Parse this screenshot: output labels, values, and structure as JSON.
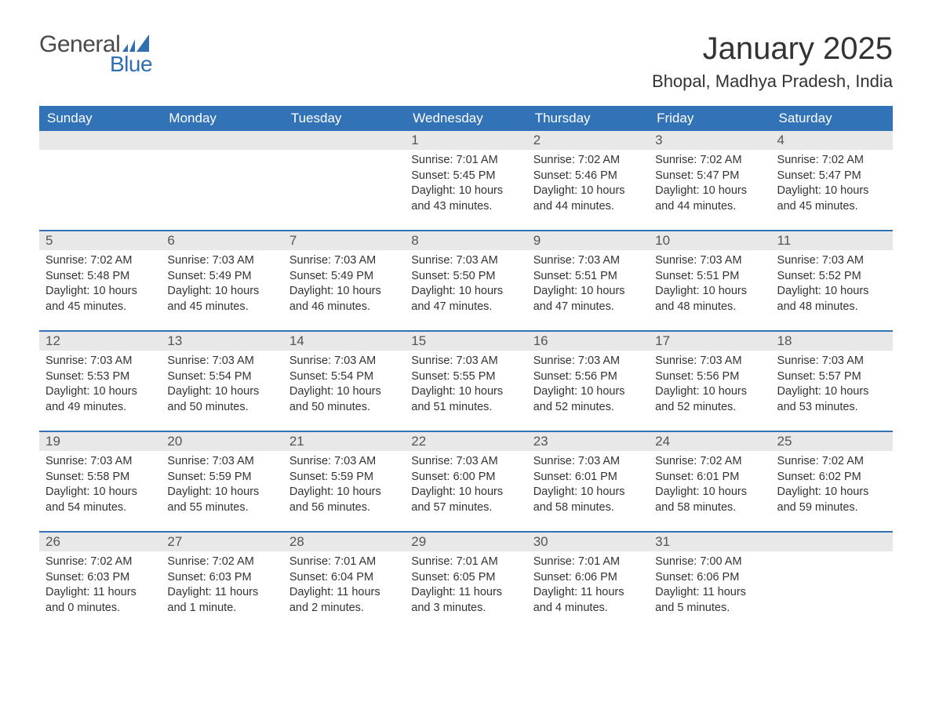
{
  "brand": {
    "word1": "General",
    "word2": "Blue",
    "icon_color": "#2f6fb0",
    "text_color_word1": "#4a4a4a",
    "text_color_word2": "#2f6fb0"
  },
  "title": "January 2025",
  "location": "Bhopal, Madhya Pradesh, India",
  "colors": {
    "header_bg": "#3273b7",
    "header_text": "#ffffff",
    "daynum_bg": "#e8e8e8",
    "week_divider": "#3273b7",
    "body_bg": "#ffffff",
    "text": "#333333"
  },
  "typography": {
    "title_fontsize_pt": 30,
    "location_fontsize_pt": 17,
    "dayhead_fontsize_pt": 13,
    "daynum_fontsize_pt": 13,
    "cell_fontsize_pt": 11
  },
  "day_headers": [
    "Sunday",
    "Monday",
    "Tuesday",
    "Wednesday",
    "Thursday",
    "Friday",
    "Saturday"
  ],
  "weeks": [
    [
      {
        "empty": true
      },
      {
        "empty": true
      },
      {
        "empty": true
      },
      {
        "day": "1",
        "sunrise": "Sunrise: 7:01 AM",
        "sunset": "Sunset: 5:45 PM",
        "daylight": "Daylight: 10 hours and 43 minutes."
      },
      {
        "day": "2",
        "sunrise": "Sunrise: 7:02 AM",
        "sunset": "Sunset: 5:46 PM",
        "daylight": "Daylight: 10 hours and 44 minutes."
      },
      {
        "day": "3",
        "sunrise": "Sunrise: 7:02 AM",
        "sunset": "Sunset: 5:47 PM",
        "daylight": "Daylight: 10 hours and 44 minutes."
      },
      {
        "day": "4",
        "sunrise": "Sunrise: 7:02 AM",
        "sunset": "Sunset: 5:47 PM",
        "daylight": "Daylight: 10 hours and 45 minutes."
      }
    ],
    [
      {
        "day": "5",
        "sunrise": "Sunrise: 7:02 AM",
        "sunset": "Sunset: 5:48 PM",
        "daylight": "Daylight: 10 hours and 45 minutes."
      },
      {
        "day": "6",
        "sunrise": "Sunrise: 7:03 AM",
        "sunset": "Sunset: 5:49 PM",
        "daylight": "Daylight: 10 hours and 45 minutes."
      },
      {
        "day": "7",
        "sunrise": "Sunrise: 7:03 AM",
        "sunset": "Sunset: 5:49 PM",
        "daylight": "Daylight: 10 hours and 46 minutes."
      },
      {
        "day": "8",
        "sunrise": "Sunrise: 7:03 AM",
        "sunset": "Sunset: 5:50 PM",
        "daylight": "Daylight: 10 hours and 47 minutes."
      },
      {
        "day": "9",
        "sunrise": "Sunrise: 7:03 AM",
        "sunset": "Sunset: 5:51 PM",
        "daylight": "Daylight: 10 hours and 47 minutes."
      },
      {
        "day": "10",
        "sunrise": "Sunrise: 7:03 AM",
        "sunset": "Sunset: 5:51 PM",
        "daylight": "Daylight: 10 hours and 48 minutes."
      },
      {
        "day": "11",
        "sunrise": "Sunrise: 7:03 AM",
        "sunset": "Sunset: 5:52 PM",
        "daylight": "Daylight: 10 hours and 48 minutes."
      }
    ],
    [
      {
        "day": "12",
        "sunrise": "Sunrise: 7:03 AM",
        "sunset": "Sunset: 5:53 PM",
        "daylight": "Daylight: 10 hours and 49 minutes."
      },
      {
        "day": "13",
        "sunrise": "Sunrise: 7:03 AM",
        "sunset": "Sunset: 5:54 PM",
        "daylight": "Daylight: 10 hours and 50 minutes."
      },
      {
        "day": "14",
        "sunrise": "Sunrise: 7:03 AM",
        "sunset": "Sunset: 5:54 PM",
        "daylight": "Daylight: 10 hours and 50 minutes."
      },
      {
        "day": "15",
        "sunrise": "Sunrise: 7:03 AM",
        "sunset": "Sunset: 5:55 PM",
        "daylight": "Daylight: 10 hours and 51 minutes."
      },
      {
        "day": "16",
        "sunrise": "Sunrise: 7:03 AM",
        "sunset": "Sunset: 5:56 PM",
        "daylight": "Daylight: 10 hours and 52 minutes."
      },
      {
        "day": "17",
        "sunrise": "Sunrise: 7:03 AM",
        "sunset": "Sunset: 5:56 PM",
        "daylight": "Daylight: 10 hours and 52 minutes."
      },
      {
        "day": "18",
        "sunrise": "Sunrise: 7:03 AM",
        "sunset": "Sunset: 5:57 PM",
        "daylight": "Daylight: 10 hours and 53 minutes."
      }
    ],
    [
      {
        "day": "19",
        "sunrise": "Sunrise: 7:03 AM",
        "sunset": "Sunset: 5:58 PM",
        "daylight": "Daylight: 10 hours and 54 minutes."
      },
      {
        "day": "20",
        "sunrise": "Sunrise: 7:03 AM",
        "sunset": "Sunset: 5:59 PM",
        "daylight": "Daylight: 10 hours and 55 minutes."
      },
      {
        "day": "21",
        "sunrise": "Sunrise: 7:03 AM",
        "sunset": "Sunset: 5:59 PM",
        "daylight": "Daylight: 10 hours and 56 minutes."
      },
      {
        "day": "22",
        "sunrise": "Sunrise: 7:03 AM",
        "sunset": "Sunset: 6:00 PM",
        "daylight": "Daylight: 10 hours and 57 minutes."
      },
      {
        "day": "23",
        "sunrise": "Sunrise: 7:03 AM",
        "sunset": "Sunset: 6:01 PM",
        "daylight": "Daylight: 10 hours and 58 minutes."
      },
      {
        "day": "24",
        "sunrise": "Sunrise: 7:02 AM",
        "sunset": "Sunset: 6:01 PM",
        "daylight": "Daylight: 10 hours and 58 minutes."
      },
      {
        "day": "25",
        "sunrise": "Sunrise: 7:02 AM",
        "sunset": "Sunset: 6:02 PM",
        "daylight": "Daylight: 10 hours and 59 minutes."
      }
    ],
    [
      {
        "day": "26",
        "sunrise": "Sunrise: 7:02 AM",
        "sunset": "Sunset: 6:03 PM",
        "daylight": "Daylight: 11 hours and 0 minutes."
      },
      {
        "day": "27",
        "sunrise": "Sunrise: 7:02 AM",
        "sunset": "Sunset: 6:03 PM",
        "daylight": "Daylight: 11 hours and 1 minute."
      },
      {
        "day": "28",
        "sunrise": "Sunrise: 7:01 AM",
        "sunset": "Sunset: 6:04 PM",
        "daylight": "Daylight: 11 hours and 2 minutes."
      },
      {
        "day": "29",
        "sunrise": "Sunrise: 7:01 AM",
        "sunset": "Sunset: 6:05 PM",
        "daylight": "Daylight: 11 hours and 3 minutes."
      },
      {
        "day": "30",
        "sunrise": "Sunrise: 7:01 AM",
        "sunset": "Sunset: 6:06 PM",
        "daylight": "Daylight: 11 hours and 4 minutes."
      },
      {
        "day": "31",
        "sunrise": "Sunrise: 7:00 AM",
        "sunset": "Sunset: 6:06 PM",
        "daylight": "Daylight: 11 hours and 5 minutes."
      },
      {
        "empty": true
      }
    ]
  ]
}
